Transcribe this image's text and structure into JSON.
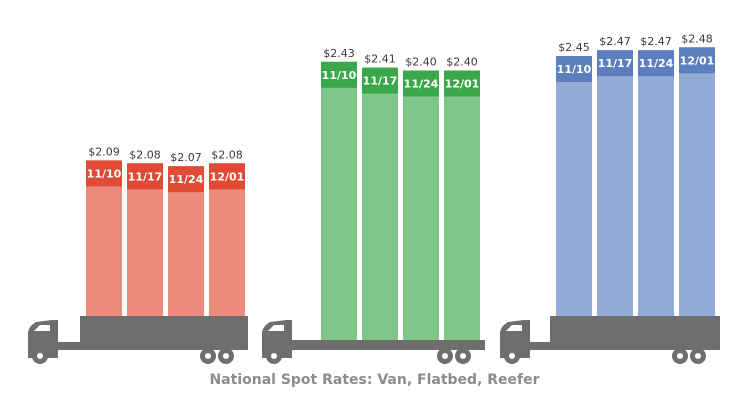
{
  "colors": {
    "van": "#e14b36",
    "flatbed": "#3aa84a",
    "reefer": "#5b7fbf",
    "truck": "#6e6e6e"
  },
  "caption": "National Spot Rates: Van, Flatbed, Reefer",
  "chart_data": {
    "type": "bar",
    "title": "National Spot Rates: Van, Flatbed, Reefer",
    "categories": [
      "11/10",
      "11/17",
      "11/24",
      "12/01"
    ],
    "series": [
      {
        "name": "Van",
        "values": [
          2.09,
          2.08,
          2.07,
          2.08
        ],
        "labels": [
          "$2.09",
          "$2.08",
          "$2.07",
          "$2.08"
        ]
      },
      {
        "name": "Flatbed",
        "values": [
          2.43,
          2.41,
          2.4,
          2.4
        ],
        "labels": [
          "$2.43",
          "$2.41",
          "$2.40",
          "$2.40"
        ]
      },
      {
        "name": "Reefer",
        "values": [
          2.45,
          2.47,
          2.47,
          2.48
        ],
        "labels": [
          "$2.45",
          "$2.47",
          "$2.47",
          "$2.48"
        ]
      }
    ],
    "grid": false,
    "legend": "none"
  }
}
